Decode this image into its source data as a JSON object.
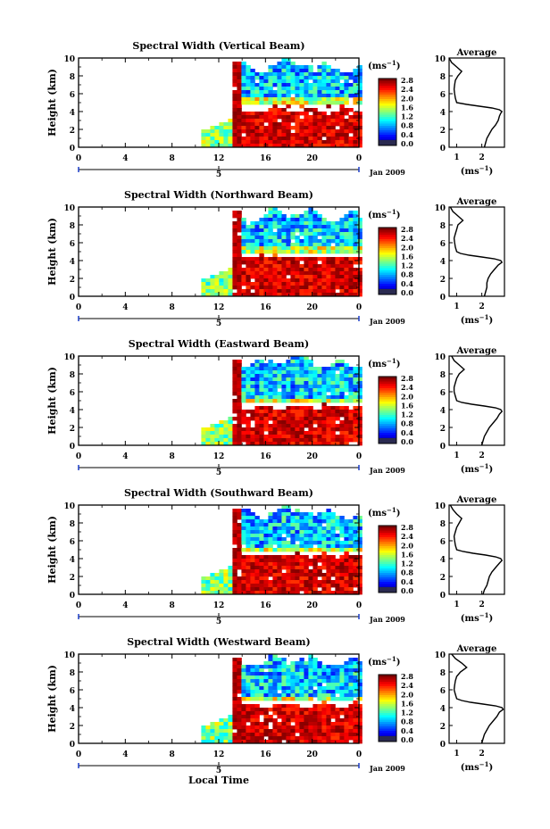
{
  "figure": {
    "x_label": "Local Time",
    "date_label": "Jan 2009",
    "unit_label": "(ms",
    "unit_exp": "−1",
    "average_title": "Average"
  },
  "chart_data": [
    {
      "type": "heatmap",
      "title": "Spectral Width (Vertical Beam)",
      "ylabel": "Height (km)",
      "xlabel": "",
      "x_ticks": [
        "0",
        "4",
        "8",
        "12",
        "16",
        "20",
        "0"
      ],
      "x_range": [
        0,
        24
      ],
      "y_ticks": [
        "0",
        "2",
        "4",
        "6",
        "8",
        "10"
      ],
      "y_range": [
        0,
        10
      ],
      "day_marker": "5",
      "colorbar": {
        "ticks": [
          "0.0",
          "0.4",
          "0.8",
          "1.2",
          "1.6",
          "2.0",
          "2.4",
          "2.8"
        ],
        "range": [
          0,
          2.8
        ]
      },
      "data_region": {
        "start_hour": 10.5,
        "end_hour": 24
      },
      "cirrus_layer": [
        5.0,
        9.6
      ],
      "lower_layer_top_km": 4.1,
      "profile": {
        "x_ticks": [
          "1",
          "2"
        ],
        "x_range": [
          0.7,
          2.9
        ],
        "heights_km": [
          0,
          0.5,
          1,
          1.5,
          2,
          2.5,
          3,
          3.5,
          3.8,
          4.0,
          4.2,
          4.4,
          4.6,
          4.8,
          5.0,
          5.5,
          6,
          6.5,
          7,
          7.5,
          8,
          8.5,
          9,
          9.5,
          10
        ],
        "values": [
          2.1,
          2.15,
          2.2,
          2.3,
          2.4,
          2.55,
          2.65,
          2.7,
          2.75,
          2.8,
          2.7,
          2.4,
          1.9,
          1.4,
          1.0,
          0.95,
          0.92,
          0.9,
          0.92,
          0.95,
          1.05,
          1.2,
          1.0,
          0.8,
          0.7
        ]
      }
    },
    {
      "type": "heatmap",
      "title": "Spectral Width (Northward Beam)",
      "ylabel": "Height (km)",
      "xlabel": "",
      "x_ticks": [
        "0",
        "4",
        "8",
        "12",
        "16",
        "20",
        "0"
      ],
      "x_range": [
        0,
        24
      ],
      "y_ticks": [
        "0",
        "2",
        "4",
        "6",
        "8",
        "10"
      ],
      "y_range": [
        0,
        10
      ],
      "day_marker": "5",
      "colorbar": {
        "ticks": [
          "0.0",
          "0.4",
          "0.8",
          "1.2",
          "1.6",
          "2.0",
          "2.4",
          "2.8"
        ],
        "range": [
          0,
          2.8
        ]
      },
      "data_region": {
        "start_hour": 10.5,
        "end_hour": 24
      },
      "cirrus_layer": [
        4.9,
        9.7
      ],
      "lower_layer_top_km": 4.4,
      "profile": {
        "x_ticks": [
          "1",
          "2"
        ],
        "x_range": [
          0.7,
          2.9
        ],
        "heights_km": [
          0,
          0.5,
          1,
          1.5,
          2,
          2.5,
          3,
          3.5,
          3.8,
          4.0,
          4.2,
          4.4,
          4.6,
          4.8,
          5.0,
          5.5,
          6,
          6.5,
          7,
          7.5,
          8,
          8.5,
          9,
          9.5,
          10
        ],
        "values": [
          2.1,
          2.15,
          2.2,
          2.2,
          2.25,
          2.35,
          2.5,
          2.65,
          2.8,
          2.75,
          2.5,
          2.0,
          1.5,
          1.15,
          1.0,
          0.95,
          0.92,
          0.9,
          0.95,
          1.0,
          1.05,
          1.25,
          1.05,
          0.85,
          0.75
        ]
      }
    },
    {
      "type": "heatmap",
      "title": "Spectral Width (Eastward Beam)",
      "ylabel": "Height (km)",
      "xlabel": "",
      "x_ticks": [
        "0",
        "4",
        "8",
        "12",
        "16",
        "20",
        "0"
      ],
      "x_range": [
        0,
        24
      ],
      "y_ticks": [
        "0",
        "2",
        "4",
        "6",
        "8",
        "10"
      ],
      "y_range": [
        0,
        10
      ],
      "day_marker": "5",
      "colorbar": {
        "ticks": [
          "0.0",
          "0.4",
          "0.8",
          "1.2",
          "1.6",
          "2.0",
          "2.4",
          "2.8"
        ],
        "range": [
          0,
          2.8
        ]
      },
      "data_region": {
        "start_hour": 10.5,
        "end_hour": 24
      },
      "cirrus_layer": [
        4.8,
        9.8
      ],
      "lower_layer_top_km": 4.3,
      "profile": {
        "x_ticks": [
          "1",
          "2"
        ],
        "x_range": [
          0.7,
          2.9
        ],
        "heights_km": [
          0,
          0.5,
          1,
          1.5,
          2,
          2.5,
          3,
          3.5,
          3.8,
          4.0,
          4.2,
          4.4,
          4.6,
          4.8,
          5.0,
          5.5,
          6,
          6.5,
          7,
          7.5,
          8,
          8.5,
          9,
          9.5,
          10
        ],
        "values": [
          2.0,
          2.05,
          2.1,
          2.2,
          2.3,
          2.45,
          2.6,
          2.7,
          2.8,
          2.75,
          2.55,
          2.1,
          1.6,
          1.2,
          1.0,
          0.95,
          0.9,
          0.9,
          0.95,
          1.0,
          1.1,
          1.3,
          1.1,
          0.9,
          0.8
        ]
      }
    },
    {
      "type": "heatmap",
      "title": "Spectral Width (Southward Beam)",
      "ylabel": "Height (km)",
      "xlabel": "",
      "x_ticks": [
        "0",
        "4",
        "8",
        "12",
        "16",
        "20",
        "0"
      ],
      "x_range": [
        0,
        24
      ],
      "y_ticks": [
        "0",
        "2",
        "4",
        "6",
        "8",
        "10"
      ],
      "y_range": [
        0,
        10
      ],
      "day_marker": "5",
      "colorbar": {
        "ticks": [
          "0.0",
          "0.4",
          "0.8",
          "1.2",
          "1.6",
          "2.0",
          "2.4",
          "2.8"
        ],
        "range": [
          0,
          2.8
        ]
      },
      "data_region": {
        "start_hour": 10.5,
        "end_hour": 24
      },
      "cirrus_layer": [
        4.7,
        9.7
      ],
      "lower_layer_top_km": 4.4,
      "profile": {
        "x_ticks": [
          "1",
          "2"
        ],
        "x_range": [
          0.7,
          2.9
        ],
        "heights_km": [
          0,
          0.5,
          1,
          1.5,
          2,
          2.5,
          3,
          3.5,
          3.8,
          4.0,
          4.2,
          4.4,
          4.6,
          4.8,
          5.0,
          5.5,
          6,
          6.5,
          7,
          7.5,
          8,
          8.5,
          9,
          9.5,
          10
        ],
        "values": [
          2.05,
          2.1,
          2.2,
          2.25,
          2.3,
          2.4,
          2.55,
          2.7,
          2.8,
          2.75,
          2.55,
          2.15,
          1.65,
          1.25,
          1.0,
          0.95,
          0.92,
          0.9,
          0.95,
          1.0,
          1.1,
          1.2,
          1.0,
          0.85,
          0.75
        ]
      }
    },
    {
      "type": "heatmap",
      "title": "Spectral Width (Westward Beam)",
      "ylabel": "Height (km)",
      "xlabel": "Local Time",
      "x_ticks": [
        "0",
        "4",
        "8",
        "12",
        "16",
        "20",
        "0"
      ],
      "x_range": [
        0,
        24
      ],
      "y_ticks": [
        "0",
        "2",
        "4",
        "6",
        "8",
        "10"
      ],
      "y_range": [
        0,
        10
      ],
      "day_marker": "5",
      "colorbar": {
        "ticks": [
          "0.0",
          "0.4",
          "0.8",
          "1.2",
          "1.6",
          "2.0",
          "2.4",
          "2.8"
        ],
        "range": [
          0,
          2.8
        ]
      },
      "data_region": {
        "start_hour": 10.5,
        "end_hour": 24
      },
      "cirrus_layer": [
        4.8,
        9.8
      ],
      "lower_layer_top_km": 4.3,
      "profile": {
        "x_ticks": [
          "1",
          "2"
        ],
        "x_range": [
          0.7,
          2.9
        ],
        "heights_km": [
          0,
          0.5,
          1,
          1.5,
          2,
          2.5,
          3,
          3.5,
          3.8,
          4.0,
          4.2,
          4.4,
          4.6,
          4.8,
          5.0,
          5.5,
          6,
          6.5,
          7,
          7.5,
          8,
          8.5,
          9,
          9.5,
          10
        ],
        "values": [
          2.0,
          2.05,
          2.1,
          2.2,
          2.3,
          2.45,
          2.6,
          2.7,
          2.85,
          2.8,
          2.55,
          2.05,
          1.55,
          1.2,
          1.0,
          0.95,
          0.9,
          0.92,
          0.95,
          1.0,
          1.15,
          1.4,
          1.2,
          0.95,
          0.8
        ]
      }
    }
  ]
}
